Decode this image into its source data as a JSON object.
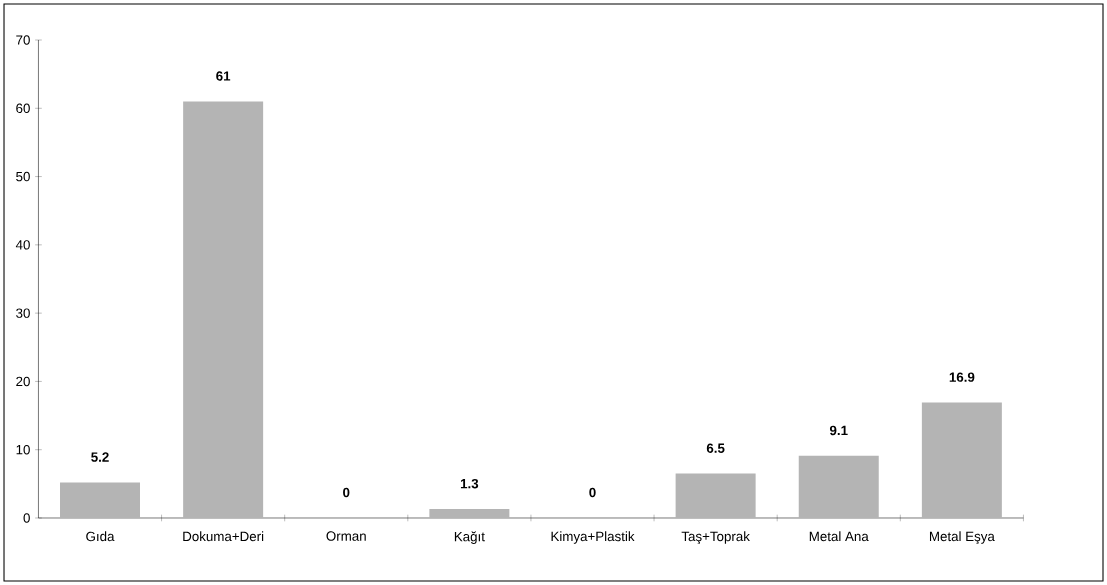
{
  "chart_data": {
    "type": "bar",
    "categories": [
      "Gıda",
      "Dokuma+Deri",
      "Orman",
      "Kağıt",
      "Kimya+Plastik",
      "Taş+Toprak",
      "Metal Ana",
      "Metal Eşya"
    ],
    "values": [
      5.2,
      61,
      0,
      1.3,
      0,
      6.5,
      9.1,
      16.9
    ],
    "color": "#b4b4b4",
    "ylim": [
      0,
      70
    ],
    "yticks": [
      0,
      10,
      20,
      30,
      40,
      50,
      60,
      70
    ],
    "data_labels": true
  }
}
